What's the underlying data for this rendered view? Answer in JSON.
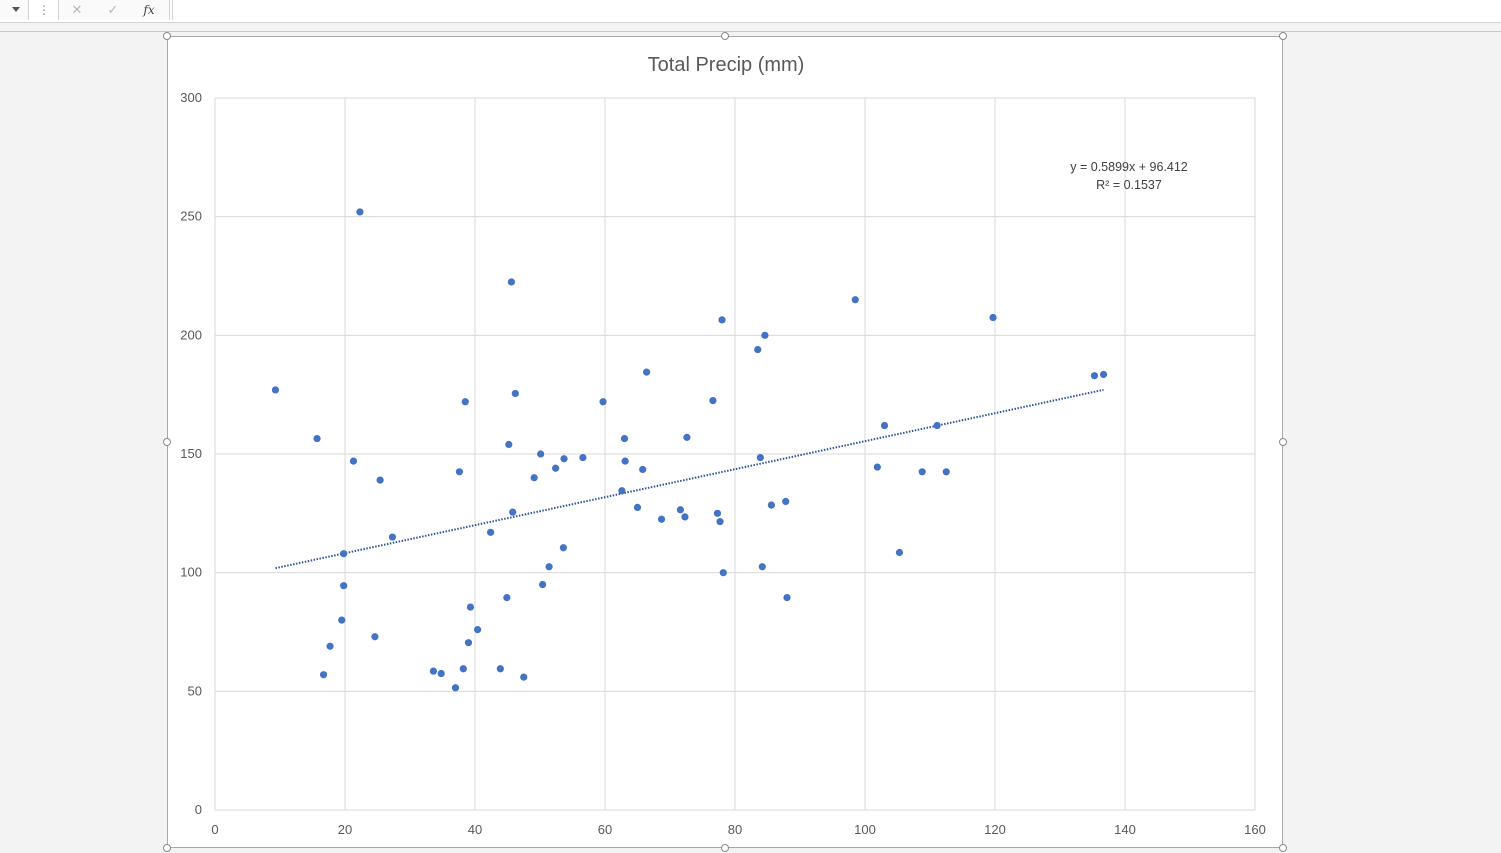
{
  "formula_bar": {
    "cancel_symbol": "✕",
    "enter_symbol": "✓",
    "fx_label": "fx",
    "formula_value": ""
  },
  "colors": {
    "marker": "#4472c4",
    "trendline": "#2e5597",
    "grid": "#d9d9d9",
    "text": "#595959"
  },
  "chart_data": {
    "type": "scatter",
    "title": "Total Precip (mm)",
    "xlabel": "",
    "ylabel": "",
    "xlim": [
      0,
      160
    ],
    "ylim": [
      0,
      300
    ],
    "x_ticks": [
      "0",
      "20",
      "40",
      "60",
      "80",
      "100",
      "120",
      "140",
      "160"
    ],
    "y_ticks": [
      "0",
      "50",
      "100",
      "150",
      "200",
      "250",
      "300"
    ],
    "grid": true,
    "legend": "none",
    "trendline": {
      "type": "linear",
      "slope": 0.5899,
      "intercept": 96.412,
      "x_range": [
        9.3,
        136.7
      ],
      "equation": "y = 0.5899x + 96.412",
      "r_squared": "R² = 0.1537"
    },
    "points": [
      [
        9.3,
        177
      ],
      [
        15.7,
        156.5
      ],
      [
        16.7,
        57
      ],
      [
        17.7,
        69
      ],
      [
        19.5,
        80
      ],
      [
        19.8,
        108
      ],
      [
        19.8,
        94.5
      ],
      [
        21.3,
        147
      ],
      [
        22.3,
        252
      ],
      [
        24.6,
        73
      ],
      [
        25.4,
        139
      ],
      [
        27.3,
        115
      ],
      [
        33.6,
        58.5
      ],
      [
        34.8,
        57.5
      ],
      [
        37.0,
        51.5
      ],
      [
        37.6,
        142.5
      ],
      [
        38.2,
        59.5
      ],
      [
        38.5,
        172
      ],
      [
        39.0,
        70.5
      ],
      [
        39.3,
        85.5
      ],
      [
        40.4,
        76
      ],
      [
        42.4,
        117
      ],
      [
        43.9,
        59.5
      ],
      [
        44.9,
        89.5
      ],
      [
        45.2,
        154
      ],
      [
        45.6,
        222.5
      ],
      [
        45.8,
        125.5
      ],
      [
        46.2,
        175.5
      ],
      [
        47.5,
        56
      ],
      [
        49.1,
        140
      ],
      [
        50.1,
        150
      ],
      [
        50.4,
        95
      ],
      [
        51.4,
        102.5
      ],
      [
        52.4,
        144
      ],
      [
        53.6,
        110.5
      ],
      [
        53.7,
        148
      ],
      [
        56.6,
        148.5
      ],
      [
        59.7,
        172
      ],
      [
        62.6,
        134.5
      ],
      [
        63.0,
        156.5
      ],
      [
        63.1,
        147
      ],
      [
        65.0,
        127.5
      ],
      [
        65.8,
        143.5
      ],
      [
        66.4,
        184.5
      ],
      [
        68.7,
        122.5
      ],
      [
        71.6,
        126.5
      ],
      [
        72.3,
        123.5
      ],
      [
        72.6,
        157
      ],
      [
        76.6,
        172.5
      ],
      [
        77.3,
        125
      ],
      [
        77.7,
        121.5
      ],
      [
        78.0,
        206.5
      ],
      [
        78.2,
        100
      ],
      [
        83.5,
        194
      ],
      [
        83.9,
        148.5
      ],
      [
        84.2,
        102.5
      ],
      [
        84.6,
        200
      ],
      [
        85.6,
        128.5
      ],
      [
        87.8,
        130
      ],
      [
        88.0,
        89.5
      ],
      [
        98.5,
        215
      ],
      [
        101.9,
        144.5
      ],
      [
        103.0,
        162
      ],
      [
        105.3,
        108.5
      ],
      [
        108.8,
        142.5
      ],
      [
        111.1,
        162
      ],
      [
        112.5,
        142.5
      ],
      [
        119.7,
        207.5
      ],
      [
        135.3,
        183
      ],
      [
        136.7,
        183.5
      ]
    ]
  }
}
